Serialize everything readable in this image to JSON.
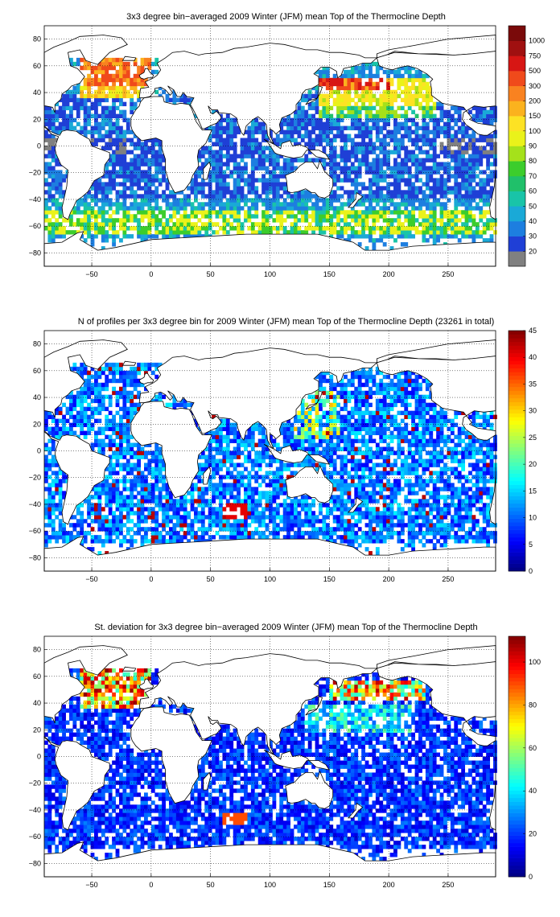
{
  "chart_data": [
    {
      "type": "heatmap",
      "title": "3x3 degree bin−averaged 2009 Winter (JFM) mean Top of the Thermocline Depth",
      "xlabel": "",
      "ylabel": "",
      "xlim": [
        -90,
        290
      ],
      "ylim": [
        -90,
        90
      ],
      "x_ticks": [
        -50,
        0,
        50,
        100,
        150,
        200,
        250
      ],
      "x_tick_labels": [
        "−50",
        "0",
        "50",
        "100",
        "150",
        "200",
        "250"
      ],
      "y_ticks": [
        80,
        60,
        40,
        20,
        0,
        -20,
        -40,
        -60,
        -80
      ],
      "y_tick_labels": [
        "80",
        "60",
        "40",
        "20",
        "0",
        "−20",
        "−40",
        "−60",
        "−80"
      ],
      "grid": true,
      "bin_size_deg": 3,
      "colorbar": {
        "scale": "categorical",
        "labels": [
          "20",
          "30",
          "40",
          "50",
          "60",
          "70",
          "80",
          "90",
          "100",
          "150",
          "200",
          "300",
          "500",
          "750",
          "1000"
        ],
        "colors": [
          "#808080",
          "#1f3fd6",
          "#1d7ee0",
          "#1aa9d7",
          "#19c4a8",
          "#20c06a",
          "#3ccd2c",
          "#a5e11b",
          "#eaf21a",
          "#fde224",
          "#fbb21e",
          "#f98220",
          "#f04a1b",
          "#d71614",
          "#a01010",
          "#7a0a0a"
        ]
      },
      "field": "mean_depth"
    },
    {
      "type": "heatmap",
      "title": "N of profiles per 3x3 degree bin for 2009 Winter (JFM) mean Top of the Thermocline Depth  (23261 in total)",
      "xlabel": "",
      "ylabel": "",
      "xlim": [
        -90,
        290
      ],
      "ylim": [
        -90,
        90
      ],
      "x_ticks": [
        -50,
        0,
        50,
        100,
        150,
        200,
        250
      ],
      "x_tick_labels": [
        "−50",
        "0",
        "50",
        "100",
        "150",
        "200",
        "250"
      ],
      "y_ticks": [
        80,
        60,
        40,
        20,
        0,
        -20,
        -40,
        -60,
        -80
      ],
      "y_tick_labels": [
        "80",
        "60",
        "40",
        "20",
        "0",
        "−20",
        "−40",
        "−60",
        "−80"
      ],
      "grid": true,
      "bin_size_deg": 3,
      "total_profiles": 23261,
      "colorbar": {
        "scale": "linear",
        "range": [
          0,
          45
        ],
        "ticks": [
          0,
          5,
          10,
          15,
          20,
          25,
          30,
          35,
          40,
          45
        ],
        "tick_labels": [
          "0",
          "5",
          "10",
          "15",
          "20",
          "25",
          "30",
          "35",
          "40",
          "45"
        ],
        "colormap": "jet"
      },
      "field": "profile_count"
    },
    {
      "type": "heatmap",
      "title": "St. deviation for 3x3 degree bin−averaged 2009 Winter (JFM) mean Top of the Thermocline Depth",
      "xlabel": "",
      "ylabel": "",
      "xlim": [
        -90,
        290
      ],
      "ylim": [
        -90,
        90
      ],
      "x_ticks": [
        -50,
        0,
        50,
        100,
        150,
        200,
        250
      ],
      "x_tick_labels": [
        "−50",
        "0",
        "50",
        "100",
        "150",
        "200",
        "250"
      ],
      "y_ticks": [
        80,
        60,
        40,
        20,
        0,
        -20,
        -40,
        -60,
        -80
      ],
      "y_tick_labels": [
        "80",
        "60",
        "40",
        "20",
        "0",
        "−20",
        "−40",
        "−60",
        "−80"
      ],
      "grid": true,
      "bin_size_deg": 3,
      "colorbar": {
        "scale": "linear",
        "range": [
          0,
          112
        ],
        "ticks": [
          0,
          20,
          40,
          60,
          80,
          100
        ],
        "tick_labels": [
          "0",
          "20",
          "40",
          "60",
          "80",
          "100"
        ],
        "colormap": "jet"
      },
      "field": "std_depth"
    }
  ]
}
